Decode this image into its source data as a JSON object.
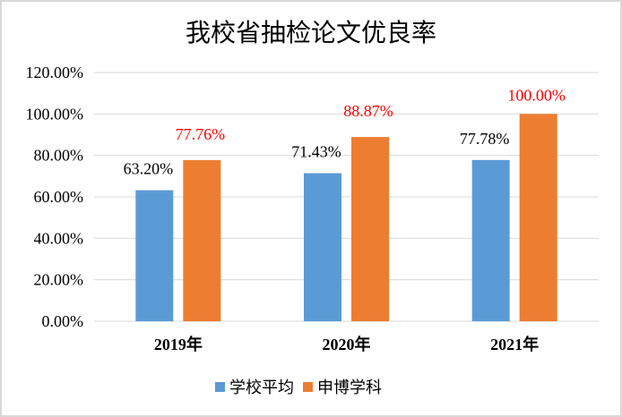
{
  "chart_data": {
    "type": "bar",
    "title": "我校省抽检论文优良率",
    "categories": [
      "2019年",
      "2020年",
      "2021年"
    ],
    "series": [
      {
        "name": "学校平均",
        "color": "#5b9bd5",
        "label_color": "#000000",
        "values": [
          63.2,
          71.43,
          77.78
        ],
        "labels": [
          "63.20%",
          "71.43%",
          "77.78%"
        ]
      },
      {
        "name": "申博学科",
        "color": "#ed7d31",
        "label_color": "#ff0000",
        "values": [
          77.76,
          88.87,
          100.0
        ],
        "labels": [
          "77.76%",
          "88.87%",
          "100.00%"
        ]
      }
    ],
    "yticks": [
      "0.00%",
      "20.00%",
      "40.00%",
      "60.00%",
      "80.00%",
      "100.00%",
      "120.00%"
    ],
    "ylim": [
      0,
      120
    ],
    "xlabel": "",
    "ylabel": "",
    "grid": true,
    "legend": "bottom"
  }
}
